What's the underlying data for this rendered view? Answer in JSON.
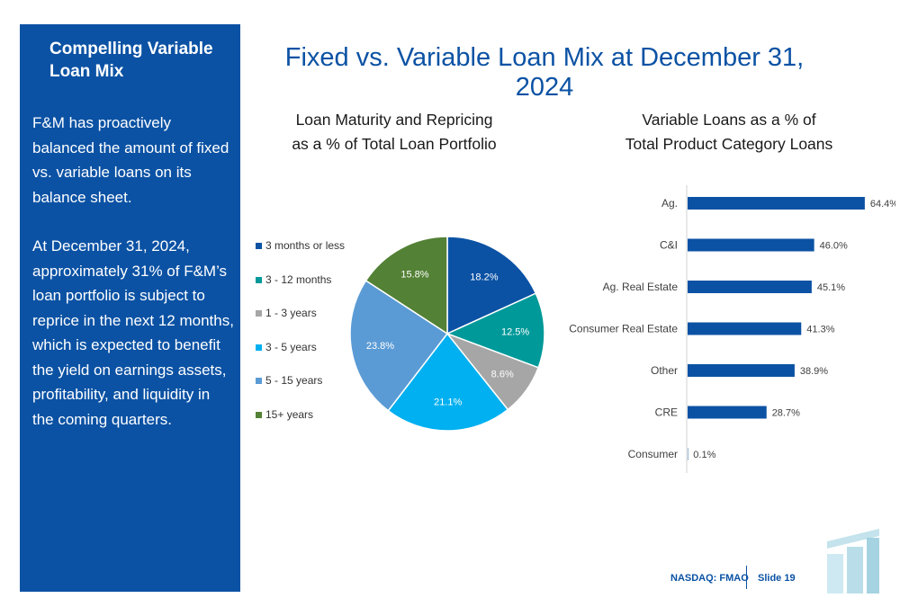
{
  "sidebar": {
    "title": "Compelling Variable Loan Mix",
    "paragraphs": [
      "F&M has proactively balanced the amount of fixed vs. variable loans on its balance sheet.",
      "At December 31, 2024, approximately 31% of F&M’s loan portfolio is subject to reprice in the next 12 months, which is expected to benefit the yield on earnings assets, profitability, and liquidity in the coming quarters."
    ]
  },
  "slide_title": "Fixed vs. Variable Loan Mix at December 31, 2024",
  "footer": {
    "ticker": "NASDAQ: FMAO",
    "slide": "Slide 19"
  },
  "chart_data": [
    {
      "type": "pie",
      "title": [
        "Loan Maturity and Repricing",
        "as a % of Total Loan Portfolio"
      ],
      "categories": [
        "3 months or less",
        "3 - 12 months",
        "1 - 3 years",
        "3 - 5 years",
        "5 - 15 years",
        "15+ years"
      ],
      "values": [
        18.2,
        12.5,
        8.6,
        21.1,
        23.8,
        15.8
      ],
      "value_labels": [
        "18.2%",
        "12.5%",
        "8.6%",
        "21.1%",
        "23.8%",
        "15.8%"
      ],
      "colors": [
        "#0b52a4",
        "#009999",
        "#a6a6a6",
        "#00b0f0",
        "#5b9bd5",
        "#538135"
      ],
      "legend_position": "left"
    },
    {
      "type": "bar",
      "orientation": "horizontal",
      "title": [
        "Variable Loans as a % of",
        "Total Product Category Loans"
      ],
      "categories": [
        "Ag.",
        "C&I",
        "Ag. Real Estate",
        "Consumer Real Estate",
        "Other",
        "CRE",
        "Consumer"
      ],
      "values": [
        64.4,
        46.0,
        45.1,
        41.3,
        38.9,
        28.7,
        0.1
      ],
      "value_labels": [
        "64.4%",
        "46.0%",
        "45.1%",
        "41.3%",
        "38.9%",
        "28.7%",
        "0.1%"
      ],
      "color": "#0b52a4",
      "xlim": [
        0,
        70
      ]
    }
  ]
}
